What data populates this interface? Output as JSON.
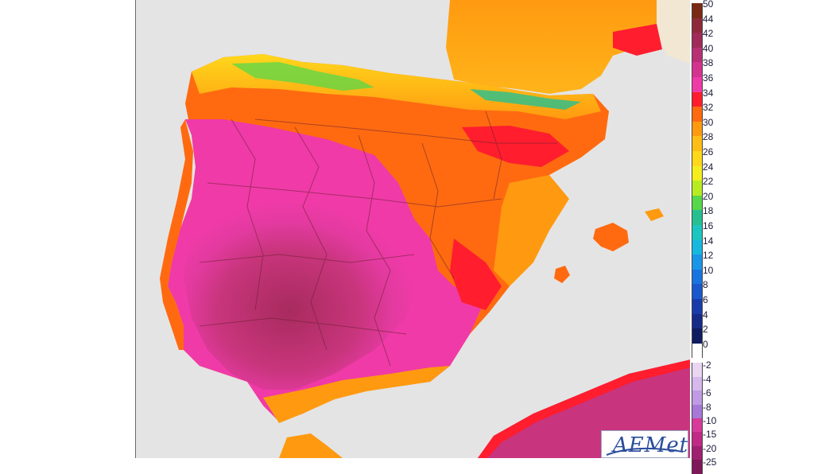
{
  "map": {
    "colors": {
      "sea": "#e4e4e4",
      "france_south": "#f7a21b",
      "north_africa": "#c8347e",
      "ocean_edge": "#f1e7d2"
    }
  },
  "legend": {
    "positive_scale": [
      {
        "label": "50",
        "color": "#7a2a14"
      },
      {
        "label": "44",
        "color": "#8e2a3a"
      },
      {
        "label": "42",
        "color": "#a12a58"
      },
      {
        "label": "40",
        "color": "#b83074"
      },
      {
        "label": "38",
        "color": "#d43390"
      },
      {
        "label": "36",
        "color": "#f03aa8"
      },
      {
        "label": "34",
        "color": "#ff1d2e"
      },
      {
        "label": "32",
        "color": "#ff6a10"
      },
      {
        "label": "30",
        "color": "#ff9a10"
      },
      {
        "label": "28",
        "color": "#ffbe16"
      },
      {
        "label": "26",
        "color": "#ffd81c"
      },
      {
        "label": "24",
        "color": "#f4ee1e"
      },
      {
        "label": "22",
        "color": "#b8ec22"
      },
      {
        "label": "20",
        "color": "#57d84a"
      },
      {
        "label": "18",
        "color": "#26c090"
      },
      {
        "label": "16",
        "color": "#1cc6c0"
      },
      {
        "label": "14",
        "color": "#16b8e0"
      },
      {
        "label": "12",
        "color": "#1a96e8"
      },
      {
        "label": "10",
        "color": "#1a74e0"
      },
      {
        "label": "8",
        "color": "#1a58cc"
      },
      {
        "label": "6",
        "color": "#1a3caa"
      },
      {
        "label": "4",
        "color": "#162a88"
      },
      {
        "label": "2",
        "color": "#101c60"
      },
      {
        "label": "0",
        "color": "#ffffff"
      }
    ],
    "negative_scale": [
      {
        "label": "-2",
        "color": "#e8d6f2"
      },
      {
        "label": "-4",
        "color": "#d6b8ec"
      },
      {
        "label": "-6",
        "color": "#c09ae4"
      },
      {
        "label": "-8",
        "color": "#a778d8"
      },
      {
        "label": "-10",
        "color": "#d83a9a"
      },
      {
        "label": "-15",
        "color": "#c02a86"
      },
      {
        "label": "-20",
        "color": "#a01f70"
      },
      {
        "label": "-25",
        "color": "#7e1858"
      }
    ]
  },
  "logo": {
    "text": "AEMet"
  }
}
